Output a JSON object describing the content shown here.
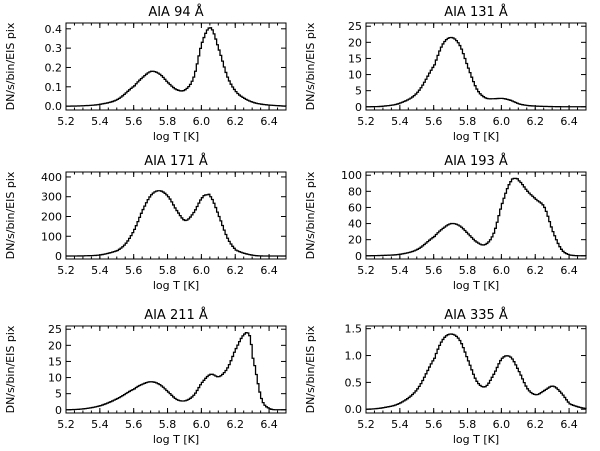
{
  "chart_data": [
    {
      "type": "line",
      "title": "AIA 94 Å",
      "xlabel": "log T [K]",
      "ylabel": "DN/s/bin/EIS pix",
      "xlim": [
        5.2,
        6.5
      ],
      "ylim": [
        -0.02,
        0.43
      ],
      "xticks": [
        5.2,
        5.4,
        5.6,
        5.8,
        6.0,
        6.2,
        6.4
      ],
      "xtick_labels": [
        "5.2",
        "5.4",
        "5.6",
        "5.8",
        "6.0",
        "6.2",
        "6.4"
      ],
      "yticks": [
        0.0,
        0.1,
        0.2,
        0.3,
        0.4
      ],
      "ytick_labels": [
        "0.0",
        "0.1",
        "0.2",
        "0.3",
        "0.4"
      ],
      "series": [
        {
          "name": "AIA 94 Å",
          "x": [
            5.2,
            5.3,
            5.4,
            5.5,
            5.6,
            5.65,
            5.7,
            5.75,
            5.8,
            5.85,
            5.9,
            5.95,
            6.0,
            6.05,
            6.1,
            6.15,
            6.2,
            6.25,
            6.3,
            6.35,
            6.4,
            6.5
          ],
          "y": [
            0.0,
            0.002,
            0.01,
            0.035,
            0.105,
            0.15,
            0.18,
            0.165,
            0.12,
            0.085,
            0.085,
            0.15,
            0.33,
            0.405,
            0.29,
            0.15,
            0.075,
            0.04,
            0.02,
            0.01,
            0.005,
            0.0
          ]
        }
      ]
    },
    {
      "type": "line",
      "title": "AIA 131 Å",
      "xlabel": "log T [K]",
      "ylabel": "DN/s/bin/EIS pix",
      "xlim": [
        5.2,
        6.5
      ],
      "ylim": [
        -1,
        26
      ],
      "xticks": [
        5.2,
        5.4,
        5.6,
        5.8,
        6.0,
        6.2,
        6.4
      ],
      "xtick_labels": [
        "5.2",
        "5.4",
        "5.6",
        "5.8",
        "6.0",
        "6.2",
        "6.4"
      ],
      "yticks": [
        0,
        5,
        10,
        15,
        20,
        25
      ],
      "ytick_labels": [
        "0",
        "5",
        "10",
        "15",
        "20",
        "25"
      ],
      "series": [
        {
          "name": "AIA 131 Å",
          "x": [
            5.2,
            5.3,
            5.4,
            5.5,
            5.6,
            5.65,
            5.7,
            5.75,
            5.8,
            5.85,
            5.9,
            5.95,
            6.0,
            6.05,
            6.1,
            6.15,
            6.2,
            6.3,
            6.4,
            6.5
          ],
          "y": [
            0.0,
            0.2,
            1.2,
            4.5,
            13.0,
            19.5,
            21.5,
            19.0,
            12.0,
            5.5,
            2.8,
            2.5,
            2.6,
            2.0,
            0.9,
            0.4,
            0.2,
            0.05,
            0.0,
            0.0
          ]
        }
      ]
    },
    {
      "type": "line",
      "title": "AIA 171 Å",
      "xlabel": "log T [K]",
      "ylabel": "DN/s/bin/EIS pix",
      "xlim": [
        5.2,
        6.5
      ],
      "ylim": [
        -15,
        425
      ],
      "xticks": [
        5.2,
        5.4,
        5.6,
        5.8,
        6.0,
        6.2,
        6.4
      ],
      "xtick_labels": [
        "5.2",
        "5.4",
        "5.6",
        "5.8",
        "6.0",
        "6.2",
        "6.4"
      ],
      "yticks": [
        0,
        100,
        200,
        300,
        400
      ],
      "ytick_labels": [
        "0",
        "100",
        "200",
        "300",
        "400"
      ],
      "series": [
        {
          "name": "AIA 171 Å",
          "x": [
            5.2,
            5.3,
            5.4,
            5.5,
            5.55,
            5.6,
            5.65,
            5.7,
            5.75,
            5.8,
            5.85,
            5.9,
            5.95,
            6.0,
            6.03,
            6.05,
            6.1,
            6.15,
            6.2,
            6.3,
            6.4,
            6.5
          ],
          "y": [
            0.0,
            1.0,
            6.0,
            28.0,
            65.0,
            135.0,
            235.0,
            310.0,
            330.0,
            300.0,
            230.0,
            180.0,
            220.0,
            295.0,
            310.0,
            300.0,
            200.0,
            90.0,
            30.0,
            4.0,
            0.0,
            0.0
          ]
        }
      ]
    },
    {
      "type": "line",
      "title": "AIA 193 Å",
      "xlabel": "log T [K]",
      "ylabel": "DN/s/bin/EIS pix",
      "xlim": [
        5.2,
        6.5
      ],
      "ylim": [
        -4,
        104
      ],
      "xticks": [
        5.2,
        5.4,
        5.6,
        5.8,
        6.0,
        6.2,
        6.4
      ],
      "xtick_labels": [
        "5.2",
        "5.4",
        "5.6",
        "5.8",
        "6.0",
        "6.2",
        "6.4"
      ],
      "yticks": [
        0,
        20,
        40,
        60,
        80,
        100
      ],
      "ytick_labels": [
        "0",
        "20",
        "40",
        "60",
        "80",
        "100"
      ],
      "series": [
        {
          "name": "AIA 193 Å",
          "x": [
            5.2,
            5.3,
            5.4,
            5.5,
            5.6,
            5.65,
            5.7,
            5.75,
            5.8,
            5.85,
            5.9,
            5.95,
            6.0,
            6.05,
            6.08,
            6.1,
            6.15,
            6.2,
            6.25,
            6.3,
            6.35,
            6.4,
            6.5
          ],
          "y": [
            0.0,
            0.5,
            2.0,
            8.0,
            24.0,
            34.0,
            40.0,
            37.0,
            27.0,
            17.0,
            14.0,
            28.0,
            65.0,
            92.0,
            96.0,
            93.0,
            80.0,
            70.0,
            60.0,
            30.0,
            8.0,
            1.0,
            0.0
          ]
        }
      ]
    },
    {
      "type": "line",
      "title": "AIA 211 Å",
      "xlabel": "log T [K]",
      "ylabel": "DN/s/bin/EIS pix",
      "xlim": [
        5.2,
        6.5
      ],
      "ylim": [
        -1,
        26
      ],
      "xticks": [
        5.2,
        5.4,
        5.6,
        5.8,
        6.0,
        6.2,
        6.4
      ],
      "xtick_labels": [
        "5.2",
        "5.4",
        "5.6",
        "5.8",
        "6.0",
        "6.2",
        "6.4"
      ],
      "yticks": [
        0,
        5,
        10,
        15,
        20,
        25
      ],
      "ytick_labels": [
        "0",
        "5",
        "10",
        "15",
        "20",
        "25"
      ],
      "series": [
        {
          "name": "AIA 211 Å",
          "x": [
            5.2,
            5.3,
            5.4,
            5.5,
            5.6,
            5.65,
            5.7,
            5.75,
            5.8,
            5.85,
            5.9,
            5.95,
            6.0,
            6.05,
            6.1,
            6.15,
            6.2,
            6.25,
            6.28,
            6.3,
            6.35,
            6.4,
            6.5
          ],
          "y": [
            0.0,
            0.3,
            1.3,
            3.5,
            6.5,
            8.0,
            8.7,
            7.8,
            5.5,
            3.2,
            2.8,
            4.5,
            8.5,
            11.0,
            10.3,
            13.0,
            19.0,
            23.5,
            23.0,
            16.0,
            3.5,
            0.3,
            0.0
          ]
        }
      ]
    },
    {
      "type": "line",
      "title": "AIA 335 Å",
      "xlabel": "log T [K]",
      "ylabel": "DN/s/bin/EIS pix",
      "xlim": [
        5.2,
        6.5
      ],
      "ylim": [
        -0.07,
        1.55
      ],
      "xticks": [
        5.2,
        5.4,
        5.6,
        5.8,
        6.0,
        6.2,
        6.4
      ],
      "xtick_labels": [
        "5.2",
        "5.4",
        "5.6",
        "5.8",
        "6.0",
        "6.2",
        "6.4"
      ],
      "yticks": [
        0.0,
        0.5,
        1.0,
        1.5
      ],
      "ytick_labels": [
        "0.0",
        "0.5",
        "1.0",
        "1.5"
      ],
      "series": [
        {
          "name": "AIA 335 Å",
          "x": [
            5.2,
            5.3,
            5.4,
            5.5,
            5.6,
            5.65,
            5.7,
            5.75,
            5.8,
            5.85,
            5.9,
            5.95,
            6.0,
            6.05,
            6.1,
            6.15,
            6.2,
            6.25,
            6.3,
            6.35,
            6.4,
            6.5
          ],
          "y": [
            0.0,
            0.03,
            0.12,
            0.38,
            0.95,
            1.3,
            1.4,
            1.28,
            0.9,
            0.52,
            0.42,
            0.65,
            0.95,
            0.97,
            0.7,
            0.38,
            0.27,
            0.35,
            0.43,
            0.3,
            0.1,
            0.01
          ]
        }
      ]
    }
  ]
}
